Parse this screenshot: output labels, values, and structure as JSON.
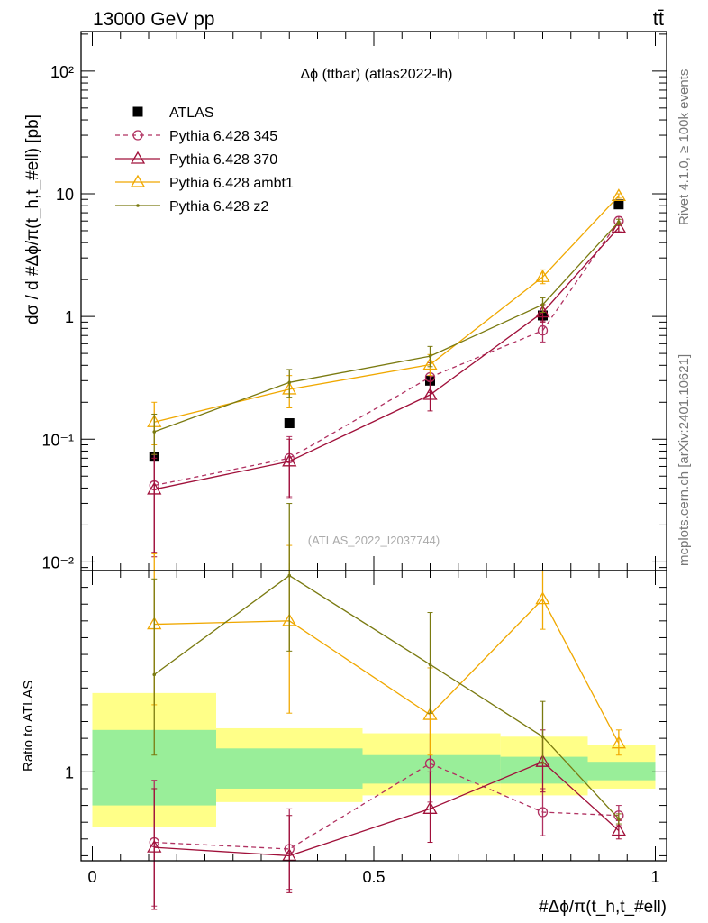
{
  "header": {
    "energy_label": "13000 GeV pp",
    "process_label": "tt̄",
    "side_label_rivet": "Rivet 4.1.0, ≥ 100k events",
    "side_label_site": "mcplots.cern.ch [arXiv:2401.10621]"
  },
  "chart_data": [
    {
      "type": "line",
      "panel": "main",
      "title": "Δϕ (ttbar) (atlas2022-lh)",
      "watermark": "(ATLAS_2022_I2037744)",
      "ylabel": "dσ / d #Δϕ/π(t_h,t_#ell) [pb]",
      "yscale": "log",
      "ylim": [
        0.0085,
        210
      ],
      "xlim": [
        -0.02,
        1.02
      ],
      "yticks": [
        {
          "value": 0.01,
          "label": "10⁻²"
        },
        {
          "value": 0.1,
          "label": "10⁻¹"
        },
        {
          "value": 1,
          "label": "1"
        },
        {
          "value": 10,
          "label": "10"
        },
        {
          "value": 100,
          "label": "10²"
        }
      ],
      "x": [
        0.11,
        0.35,
        0.6,
        0.8,
        0.935
      ],
      "series": [
        {
          "name": "ATLAS",
          "color": "#000000",
          "marker": "square",
          "line": "none",
          "values": [
            0.072,
            0.135,
            0.3,
            1.02,
            8.2
          ]
        },
        {
          "name": "Pythia 6.428 345",
          "color": "#b03060",
          "marker": "circle",
          "line": "dashed",
          "values": [
            0.042,
            0.07,
            0.32,
            0.77,
            6.0
          ],
          "err_lo": [
            0.012,
            0.034,
            0.24,
            0.62,
            5.5
          ],
          "err_hi": [
            0.075,
            0.105,
            0.42,
            0.92,
            6.5
          ]
        },
        {
          "name": "Pythia 6.428 370",
          "color": "#a0103a",
          "marker": "triangle",
          "line": "solid",
          "values": [
            0.039,
            0.066,
            0.23,
            1.08,
            5.3
          ],
          "err_lo": [
            0.011,
            0.033,
            0.17,
            0.9,
            4.9
          ],
          "err_hi": [
            0.07,
            0.1,
            0.3,
            1.25,
            5.8
          ]
        },
        {
          "name": "Pythia 6.428 ambt1",
          "color": "#f0a800",
          "marker": "triangle",
          "line": "solid",
          "values": [
            0.138,
            0.255,
            0.405,
            2.1,
            9.6
          ],
          "err_lo": [
            0.09,
            0.18,
            0.33,
            1.85,
            9.2
          ],
          "err_hi": [
            0.2,
            0.33,
            0.49,
            2.4,
            10.0
          ]
        },
        {
          "name": "Pythia 6.428 z2",
          "color": "#7a7a10",
          "marker": "dot",
          "line": "solid",
          "values": [
            0.115,
            0.29,
            0.475,
            1.25,
            5.9
          ],
          "err_lo": [
            0.075,
            0.22,
            0.39,
            1.08,
            5.6
          ],
          "err_hi": [
            0.16,
            0.37,
            0.57,
            1.42,
            6.2
          ]
        }
      ]
    },
    {
      "type": "line",
      "panel": "ratio",
      "ylabel": "Ratio to ATLAS",
      "xlabel": "#Δϕ/π(t_h,t_#ell)",
      "ylim": [
        0.47,
        2.2
      ],
      "xlim": [
        -0.02,
        1.02
      ],
      "yticks": [
        {
          "value": 1,
          "label": "1"
        }
      ],
      "xticks": [
        {
          "value": 0,
          "label": "0"
        },
        {
          "value": 0.5,
          "label": "0.5"
        },
        {
          "value": 1,
          "label": "1"
        }
      ],
      "bands": [
        {
          "x0": 0.0,
          "x1": 0.22,
          "yellow": [
            0.67,
            1.47
          ],
          "green": [
            0.8,
            1.25
          ]
        },
        {
          "x0": 0.22,
          "x1": 0.48,
          "yellow": [
            0.82,
            1.26
          ],
          "green": [
            0.9,
            1.14
          ]
        },
        {
          "x0": 0.48,
          "x1": 0.725,
          "yellow": [
            0.86,
            1.23
          ],
          "green": [
            0.93,
            1.1
          ]
        },
        {
          "x0": 0.725,
          "x1": 0.88,
          "yellow": [
            0.86,
            1.21
          ],
          "green": [
            0.93,
            1.09
          ]
        },
        {
          "x0": 0.88,
          "x1": 1.0,
          "yellow": [
            0.9,
            1.16
          ],
          "green": [
            0.95,
            1.06
          ]
        }
      ],
      "x": [
        0.11,
        0.35,
        0.6,
        0.8,
        0.935
      ],
      "series": [
        {
          "name": "Pythia 6.428 345",
          "color": "#b03060",
          "marker": "circle",
          "line": "dashed",
          "values": [
            0.58,
            0.54,
            1.05,
            0.76,
            0.74
          ],
          "err_lo": [
            0.2,
            0.3,
            0.82,
            0.62,
            0.68
          ],
          "err_hi": [
            0.95,
            0.78,
            1.35,
            0.9,
            0.8
          ]
        },
        {
          "name": "Pythia 6.428 370",
          "color": "#a0103a",
          "marker": "triangle",
          "line": "solid",
          "values": [
            0.55,
            0.5,
            0.78,
            1.06,
            0.65
          ],
          "err_lo": [
            0.18,
            0.28,
            0.58,
            0.88,
            0.6
          ],
          "err_hi": [
            0.9,
            0.74,
            1.0,
            1.25,
            0.71
          ]
        },
        {
          "name": "Pythia 6.428 ambt1",
          "color": "#f0a800",
          "marker": "triangle",
          "line": "solid",
          "values": [
            1.88,
            1.9,
            1.34,
            2.03,
            1.17
          ],
          "err_lo": [
            1.4,
            1.35,
            1.1,
            1.85,
            1.1
          ],
          "err_hi": [
            2.3,
            2.35,
            1.62,
            2.2,
            1.25
          ]
        },
        {
          "name": "Pythia 6.428 z2",
          "color": "#7a7a10",
          "marker": "dot",
          "line": "solid",
          "values": [
            1.58,
            2.17,
            1.64,
            1.21,
            0.72
          ],
          "err_lo": [
            1.1,
            1.72,
            1.35,
            1.05,
            0.69
          ],
          "err_hi": [
            2.15,
            2.6,
            1.95,
            1.42,
            0.75
          ]
        }
      ]
    }
  ]
}
